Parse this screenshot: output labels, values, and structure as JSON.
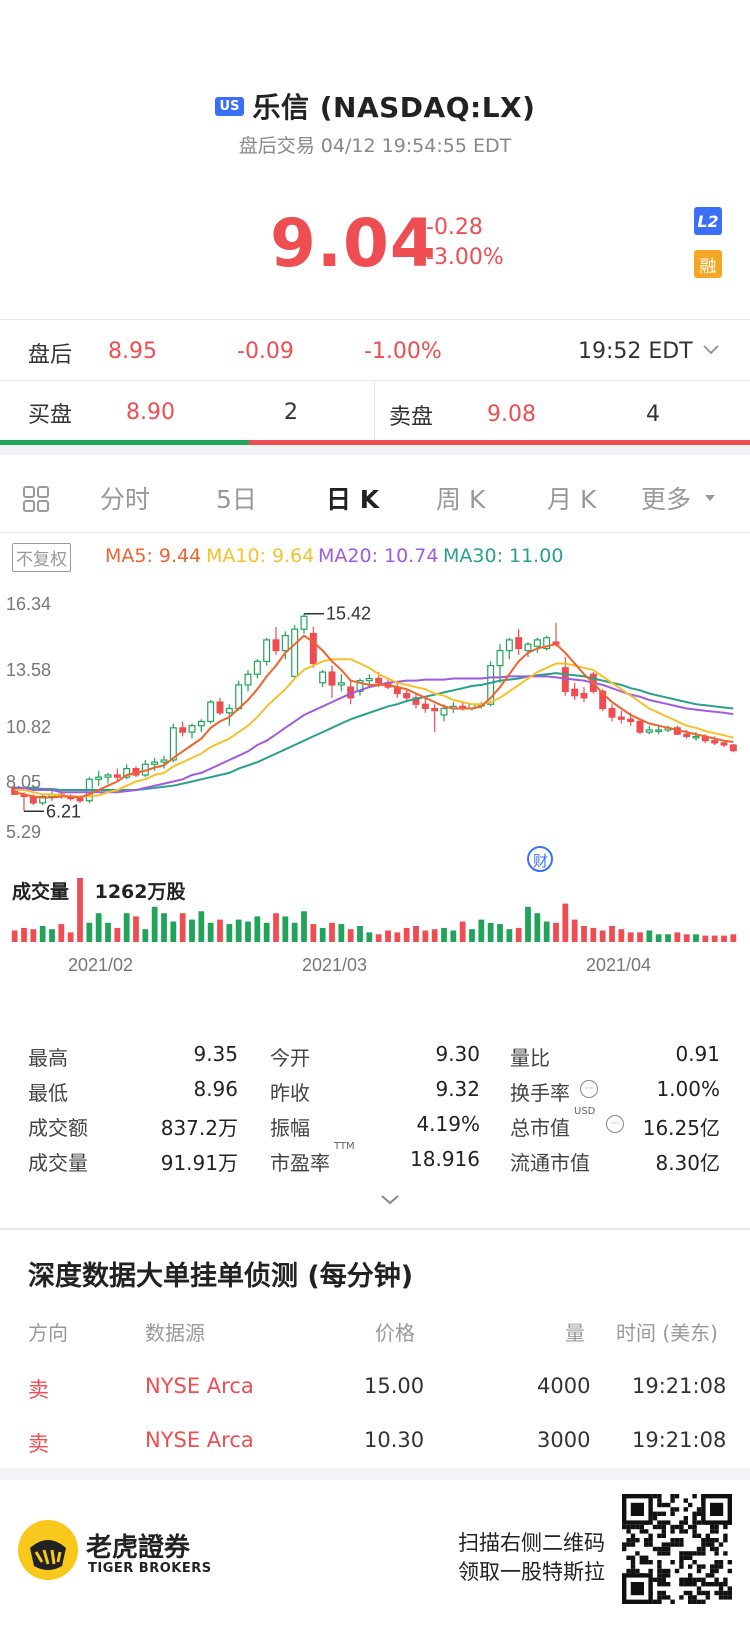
{
  "header": {
    "market_badge": "US",
    "title": "乐信 (NASDAQ:LX)",
    "subtitle": "盘后交易 04/12 19:54:55 EDT",
    "price": "9.04",
    "change": "-0.28",
    "change_pct": "-3.00%",
    "l2_badge": "L2",
    "margin_badge": "融"
  },
  "after_hours": {
    "label": "盘后",
    "price": "8.95",
    "change": "-0.09",
    "change_pct": "-1.00%",
    "time": "19:52 EDT"
  },
  "orderbook": {
    "bid_label": "买盘",
    "bid_price": "8.90",
    "bid_size": "2",
    "ask_label": "卖盘",
    "ask_price": "9.08",
    "ask_size": "4"
  },
  "tabs": [
    "分时",
    "5日",
    "日 K",
    "周 K",
    "月 K",
    "更多"
  ],
  "active_tab": "日 K",
  "ma": {
    "adjust_label": "不复权",
    "ma5": "MA5: 9.44",
    "ma10": "MA10: 9.64",
    "ma20": "MA20: 10.74",
    "ma30": "MA30: 11.00"
  },
  "colors": {
    "up": "#21a45a",
    "down": "#ee4e52",
    "ma5": "#f0622e",
    "ma10": "#f5c12b",
    "ma20": "#a05ddb",
    "ma30": "#2aa08a",
    "accent": "#3b6ff5"
  },
  "chart_data": {
    "type": "candlestick",
    "y_axis_ticks": [
      "16.34",
      "13.58",
      "10.82",
      "8.05",
      "5.29"
    ],
    "ylim": [
      5.29,
      16.34
    ],
    "x_tick_labels": [
      "2021/02",
      "2021/03",
      "2021/04"
    ],
    "max_marker": "15.42",
    "min_marker": "6.21",
    "volume_label": "成交量 ：1262万股",
    "candles": [
      [
        7.3,
        7.4,
        7.0,
        7.0
      ],
      [
        7.0,
        7.1,
        6.21,
        6.9
      ],
      [
        6.9,
        7.0,
        6.5,
        6.6
      ],
      [
        6.6,
        7.0,
        6.5,
        6.9
      ],
      [
        6.9,
        7.2,
        6.7,
        7.0
      ],
      [
        7.0,
        7.1,
        6.8,
        6.9
      ],
      [
        6.9,
        7.0,
        6.7,
        6.8
      ],
      [
        6.8,
        6.9,
        6.6,
        6.7
      ],
      [
        6.7,
        7.8,
        6.6,
        7.7
      ],
      [
        7.7,
        8.1,
        7.4,
        7.8
      ],
      [
        7.8,
        8.0,
        7.5,
        7.9
      ],
      [
        7.9,
        8.2,
        7.6,
        7.8
      ],
      [
        7.8,
        8.4,
        7.7,
        8.2
      ],
      [
        8.2,
        8.3,
        7.8,
        7.9
      ],
      [
        7.9,
        8.6,
        7.8,
        8.4
      ],
      [
        8.4,
        8.7,
        8.1,
        8.5
      ],
      [
        8.5,
        8.8,
        8.2,
        8.6
      ],
      [
        8.6,
        10.3,
        8.5,
        10.1
      ],
      [
        10.1,
        10.4,
        9.7,
        9.9
      ],
      [
        9.9,
        10.3,
        9.6,
        10.2
      ],
      [
        10.2,
        10.5,
        9.9,
        10.4
      ],
      [
        10.4,
        11.4,
        10.3,
        11.3
      ],
      [
        11.3,
        11.5,
        10.7,
        10.8
      ],
      [
        10.8,
        11.2,
        10.2,
        11.0
      ],
      [
        11.0,
        12.3,
        10.9,
        12.1
      ],
      [
        12.1,
        12.8,
        11.8,
        12.6
      ],
      [
        12.6,
        13.3,
        12.4,
        13.2
      ],
      [
        13.2,
        14.3,
        13.0,
        14.2
      ],
      [
        14.2,
        14.8,
        13.5,
        13.7
      ],
      [
        13.7,
        14.6,
        13.3,
        14.4
      ],
      [
        12.5,
        14.9,
        12.4,
        14.7
      ],
      [
        14.7,
        15.42,
        14.5,
        15.3
      ],
      [
        14.5,
        14.8,
        12.9,
        13.1
      ],
      [
        12.2,
        12.8,
        12.0,
        12.7
      ],
      [
        12.7,
        13.0,
        11.5,
        12.1
      ],
      [
        12.1,
        12.6,
        11.8,
        12.2
      ],
      [
        12.0,
        12.3,
        11.2,
        11.5
      ],
      [
        11.8,
        12.4,
        11.6,
        12.3
      ],
      [
        12.3,
        12.6,
        12.0,
        12.4
      ],
      [
        12.4,
        12.7,
        12.0,
        12.2
      ],
      [
        12.2,
        12.4,
        11.9,
        12.0
      ],
      [
        12.0,
        12.2,
        11.5,
        11.7
      ],
      [
        11.7,
        11.9,
        11.3,
        11.5
      ],
      [
        11.5,
        11.7,
        11.0,
        11.2
      ],
      [
        11.2,
        11.5,
        10.8,
        11.0
      ],
      [
        11.0,
        11.2,
        9.9,
        10.9
      ],
      [
        10.7,
        11.2,
        10.4,
        11.0
      ],
      [
        11.0,
        11.3,
        10.8,
        11.1
      ],
      [
        11.1,
        11.3,
        10.9,
        11.0
      ],
      [
        11.0,
        11.2,
        10.9,
        11.2
      ],
      [
        11.2,
        11.3,
        11.0,
        11.2
      ],
      [
        11.2,
        13.2,
        11.1,
        13.0
      ],
      [
        13.0,
        14.0,
        12.2,
        13.7
      ],
      [
        13.7,
        14.3,
        13.3,
        14.2
      ],
      [
        14.3,
        14.7,
        13.5,
        13.8
      ],
      [
        13.7,
        14.1,
        13.4,
        14.0
      ],
      [
        13.9,
        14.3,
        13.6,
        14.2
      ],
      [
        13.8,
        14.4,
        13.7,
        14.3
      ],
      [
        14.1,
        15.0,
        13.9,
        14.0
      ],
      [
        12.9,
        13.4,
        11.6,
        11.8
      ],
      [
        11.9,
        12.2,
        11.4,
        11.6
      ],
      [
        11.7,
        12.0,
        11.3,
        11.5
      ],
      [
        12.6,
        12.7,
        11.7,
        11.8
      ],
      [
        11.8,
        11.9,
        10.9,
        11.0
      ],
      [
        11.0,
        11.2,
        10.4,
        10.6
      ],
      [
        10.6,
        10.9,
        10.3,
        10.5
      ],
      [
        10.5,
        10.8,
        10.2,
        10.4
      ],
      [
        10.4,
        10.5,
        9.8,
        9.9
      ],
      [
        9.9,
        10.2,
        9.8,
        10.0
      ],
      [
        10.0,
        10.2,
        9.8,
        10.0
      ],
      [
        10.0,
        10.2,
        9.9,
        10.1
      ],
      [
        10.1,
        10.2,
        9.8,
        9.8
      ],
      [
        9.8,
        10.0,
        9.6,
        9.7
      ],
      [
        9.7,
        9.9,
        9.5,
        9.7
      ],
      [
        9.7,
        9.8,
        9.4,
        9.5
      ],
      [
        9.5,
        9.7,
        9.3,
        9.4
      ],
      [
        9.4,
        9.5,
        9.2,
        9.3
      ],
      [
        9.3,
        9.35,
        8.96,
        9.04
      ]
    ],
    "ma5": [
      7.1,
      7.0,
      6.9,
      6.85,
      6.85,
      6.9,
      6.9,
      6.85,
      7.0,
      7.2,
      7.4,
      7.6,
      7.9,
      8.0,
      8.1,
      8.25,
      8.35,
      8.7,
      9.0,
      9.3,
      9.6,
      10.1,
      10.4,
      10.6,
      11.0,
      11.4,
      11.9,
      12.5,
      13.0,
      13.6,
      14.0,
      14.4,
      14.1,
      13.7,
      13.2,
      12.8,
      12.3,
      12.2,
      12.1,
      12.1,
      12.1,
      12.0,
      11.9,
      11.7,
      11.5,
      11.3,
      11.1,
      11.0,
      11.0,
      11.0,
      11.1,
      11.5,
      12.0,
      12.6,
      13.2,
      13.6,
      13.8,
      13.9,
      14.0,
      13.6,
      13.1,
      12.6,
      12.2,
      11.7,
      11.3,
      11.0,
      10.7,
      10.5,
      10.3,
      10.2,
      10.1,
      10.0,
      9.9,
      9.8,
      9.7,
      9.6,
      9.5,
      9.44
    ],
    "ma10": [
      7.2,
      7.2,
      7.1,
      7.0,
      7.0,
      6.95,
      6.9,
      6.9,
      6.9,
      6.95,
      7.1,
      7.2,
      7.4,
      7.6,
      7.7,
      7.9,
      8.0,
      8.3,
      8.5,
      8.7,
      8.9,
      9.2,
      9.4,
      9.6,
      9.9,
      10.2,
      10.6,
      11.1,
      11.5,
      11.9,
      12.4,
      12.8,
      13.0,
      13.2,
      13.3,
      13.3,
      13.3,
      13.1,
      12.9,
      12.6,
      12.4,
      12.2,
      12.1,
      12.0,
      11.9,
      11.7,
      11.6,
      11.4,
      11.3,
      11.2,
      11.2,
      11.3,
      11.5,
      11.8,
      12.1,
      12.4,
      12.7,
      12.9,
      13.1,
      13.1,
      13.0,
      12.9,
      12.8,
      12.5,
      12.2,
      11.9,
      11.6,
      11.3,
      11.0,
      10.8,
      10.6,
      10.4,
      10.2,
      10.1,
      9.95,
      9.85,
      9.75,
      9.64
    ],
    "ma20": [
      7.3,
      7.3,
      7.2,
      7.2,
      7.2,
      7.1,
      7.1,
      7.1,
      7.1,
      7.1,
      7.1,
      7.1,
      7.15,
      7.2,
      7.3,
      7.4,
      7.5,
      7.6,
      7.7,
      7.9,
      8.0,
      8.2,
      8.4,
      8.6,
      8.8,
      9.0,
      9.3,
      9.5,
      9.8,
      10.1,
      10.4,
      10.7,
      10.9,
      11.1,
      11.3,
      11.5,
      11.7,
      11.85,
      12.0,
      12.1,
      12.2,
      12.25,
      12.3,
      12.3,
      12.35,
      12.35,
      12.35,
      12.4,
      12.4,
      12.4,
      12.4,
      12.45,
      12.45,
      12.5,
      12.5,
      12.5,
      12.5,
      12.5,
      12.45,
      12.4,
      12.35,
      12.3,
      12.2,
      12.1,
      11.95,
      11.8,
      11.65,
      11.55,
      11.4,
      11.3,
      11.2,
      11.1,
      11.0,
      10.95,
      10.9,
      10.85,
      10.8,
      10.74
    ],
    "ma30": [
      7.3,
      7.3,
      7.3,
      7.25,
      7.25,
      7.2,
      7.2,
      7.2,
      7.2,
      7.2,
      7.2,
      7.2,
      7.2,
      7.2,
      7.25,
      7.3,
      7.35,
      7.4,
      7.5,
      7.6,
      7.7,
      7.8,
      7.9,
      8.0,
      8.2,
      8.35,
      8.5,
      8.7,
      8.9,
      9.1,
      9.3,
      9.5,
      9.7,
      9.9,
      10.1,
      10.3,
      10.5,
      10.65,
      10.8,
      10.95,
      11.1,
      11.2,
      11.35,
      11.45,
      11.55,
      11.65,
      11.75,
      11.85,
      11.95,
      12.05,
      12.1,
      12.2,
      12.3,
      12.35,
      12.4,
      12.5,
      12.55,
      12.6,
      12.65,
      12.6,
      12.55,
      12.5,
      12.4,
      12.3,
      12.2,
      12.1,
      11.95,
      11.85,
      11.7,
      11.6,
      11.5,
      11.4,
      11.3,
      11.2,
      11.15,
      11.1,
      11.05,
      11.0
    ],
    "volume_rel": [
      0.18,
      0.22,
      0.2,
      0.25,
      0.2,
      0.28,
      0.15,
      1.0,
      0.3,
      0.45,
      0.3,
      0.22,
      0.45,
      0.4,
      0.2,
      0.55,
      0.45,
      0.32,
      0.45,
      0.35,
      0.48,
      0.3,
      0.35,
      0.28,
      0.35,
      0.32,
      0.4,
      0.3,
      0.45,
      0.4,
      0.3,
      0.48,
      0.28,
      0.22,
      0.3,
      0.28,
      0.2,
      0.25,
      0.15,
      0.12,
      0.18,
      0.15,
      0.22,
      0.25,
      0.18,
      0.2,
      0.22,
      0.18,
      0.32,
      0.2,
      0.35,
      0.3,
      0.28,
      0.2,
      0.22,
      0.55,
      0.45,
      0.32,
      0.3,
      0.6,
      0.35,
      0.25,
      0.22,
      0.18,
      0.25,
      0.2,
      0.15,
      0.15,
      0.18,
      0.12,
      0.12,
      0.15,
      0.12,
      0.12,
      0.1,
      0.1,
      0.1,
      0.12
    ]
  },
  "stats": [
    {
      "label": "最高",
      "value": "9.35"
    },
    {
      "label": "今开",
      "value": "9.30"
    },
    {
      "label": "量比",
      "value": "0.91"
    },
    {
      "label": "最低",
      "value": "8.96"
    },
    {
      "label": "昨收",
      "value": "9.32"
    },
    {
      "label": "换手率",
      "value": "1.00%"
    },
    {
      "label": "成交额",
      "value": "837.2万"
    },
    {
      "label": "振幅",
      "value": "4.19%"
    },
    {
      "label": "总市值",
      "value": "16.25亿",
      "sup": "USD"
    },
    {
      "label": "成交量",
      "value": "91.91万"
    },
    {
      "label": "市盈率",
      "value": "18.916",
      "sup": "TTM"
    },
    {
      "label": "流通市值",
      "value": "8.30亿"
    }
  ],
  "depth": {
    "title": "深度数据大单挂单侦测 (每分钟)",
    "headers": [
      "方向",
      "数据源",
      "价格",
      "量",
      "时间 (美东)"
    ],
    "rows": [
      {
        "side": "卖",
        "source": "NYSE Arca",
        "price": "15.00",
        "volume": "4000",
        "time": "19:21:08"
      },
      {
        "side": "卖",
        "source": "NYSE Arca",
        "price": "10.30",
        "volume": "3000",
        "time": "19:21:08"
      }
    ]
  },
  "footer": {
    "brand_cn": "老虎證券",
    "brand_en": "TIGER BROKERS",
    "promo_line1": "扫描右侧二维码",
    "promo_line2": "领取一股特斯拉"
  }
}
